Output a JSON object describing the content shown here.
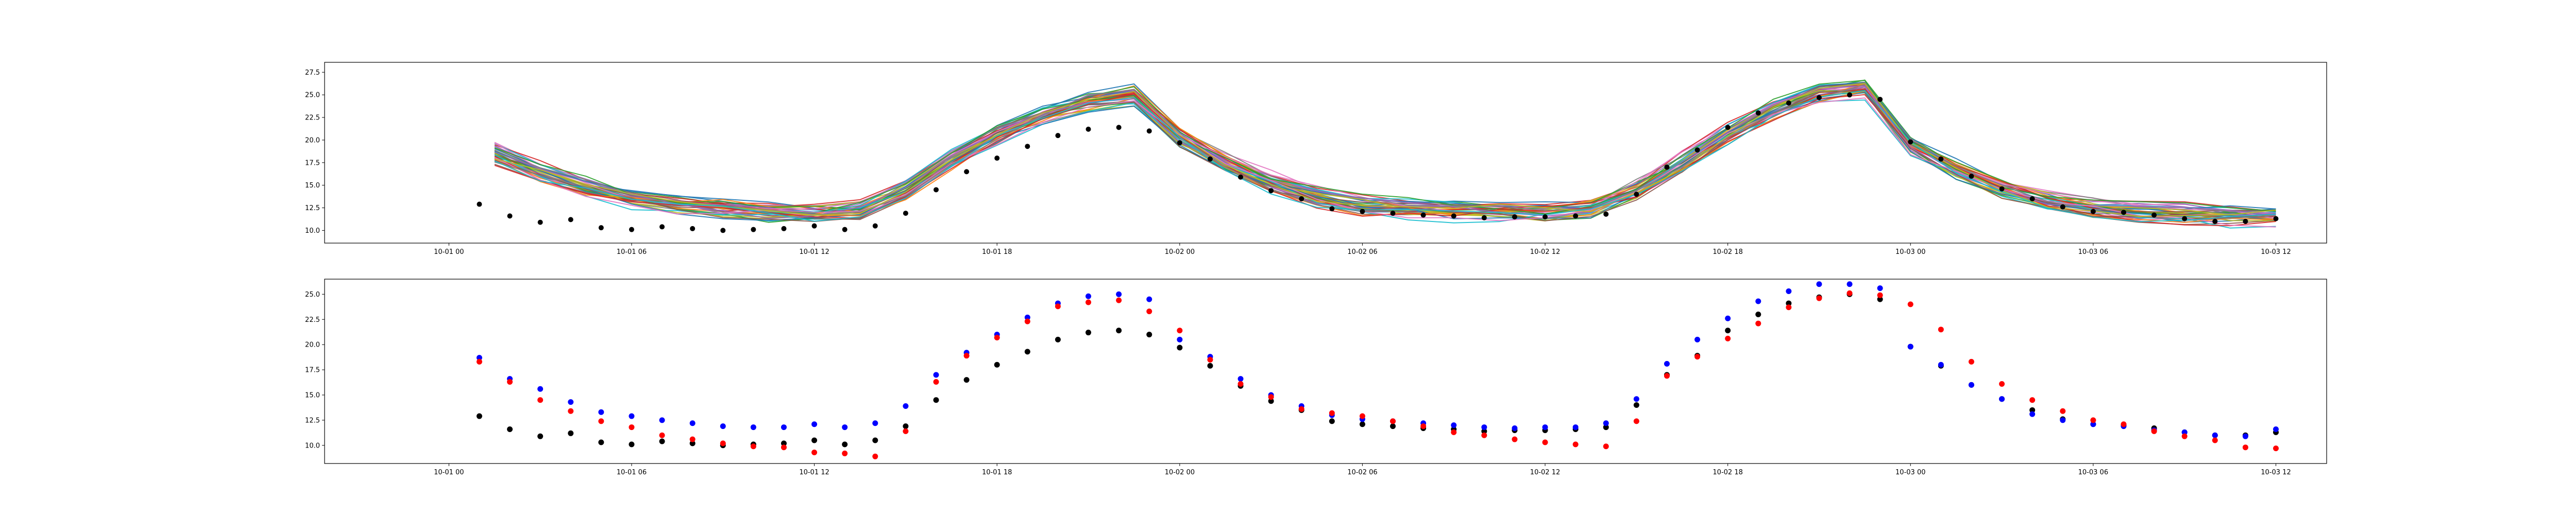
{
  "colors": {
    "observed": "#000000",
    "series_blue": "#0000ff",
    "series_red": "#ff0000",
    "ensemble_cycle": [
      "#1f77b4",
      "#ff7f0e",
      "#2ca02c",
      "#d62728",
      "#9467bd",
      "#8c564b",
      "#e377c2",
      "#7f7f7f",
      "#bcbd22",
      "#17becf"
    ]
  },
  "chart_data": [
    {
      "type": "line",
      "x_axis": {
        "type": "datetime",
        "range": [
          "2023-09-30T19:55",
          "2023-10-03T13:40"
        ],
        "tick_values": [
          "2023-10-01T00:00",
          "2023-10-01T06:00",
          "2023-10-01T12:00",
          "2023-10-01T18:00",
          "2023-10-02T00:00",
          "2023-10-02T06:00",
          "2023-10-02T12:00",
          "2023-10-02T18:00",
          "2023-10-03T00:00",
          "2023-10-03T06:00",
          "2023-10-03T12:00"
        ],
        "tick_labels": [
          "10-01 00",
          "10-01 06",
          "10-01 12",
          "10-01 18",
          "10-02 00",
          "10-02 06",
          "10-02 12",
          "10-02 18",
          "10-03 00",
          "10-03 06",
          "10-03 12"
        ]
      },
      "y_axis": {
        "range": [
          8.6,
          28.6
        ],
        "tick_values": [
          10.0,
          12.5,
          15.0,
          17.5,
          20.0,
          22.5,
          25.0,
          27.5
        ],
        "tick_labels": [
          "10.0",
          "12.5",
          "15.0",
          "17.5",
          "20.0",
          "22.5",
          "25.0",
          "27.5"
        ]
      },
      "ensemble": {
        "member_count": 40,
        "x": [
          "2023-10-01T01:30",
          "2023-10-01T03:00",
          "2023-10-01T04:30",
          "2023-10-01T06:00",
          "2023-10-01T07:30",
          "2023-10-01T09:00",
          "2023-10-01T10:30",
          "2023-10-01T12:00",
          "2023-10-01T13:30",
          "2023-10-01T15:00",
          "2023-10-01T16:30",
          "2023-10-01T18:00",
          "2023-10-01T19:30",
          "2023-10-01T21:00",
          "2023-10-01T22:30",
          "2023-10-02T00:00",
          "2023-10-02T01:30",
          "2023-10-02T03:00",
          "2023-10-02T04:30",
          "2023-10-02T06:00",
          "2023-10-02T07:30",
          "2023-10-02T09:00",
          "2023-10-02T10:30",
          "2023-10-02T12:00",
          "2023-10-02T13:30",
          "2023-10-02T15:00",
          "2023-10-02T16:30",
          "2023-10-02T18:00",
          "2023-10-02T19:30",
          "2023-10-02T21:00",
          "2023-10-02T22:30",
          "2023-10-03T00:00",
          "2023-10-03T01:30",
          "2023-10-03T03:00",
          "2023-10-03T04:30",
          "2023-10-03T06:00",
          "2023-10-03T07:30",
          "2023-10-03T09:00",
          "2023-10-03T10:30",
          "2023-10-03T12:00"
        ],
        "mean": [
          18.6,
          16.5,
          14.8,
          13.6,
          12.9,
          12.5,
          12.2,
          12.1,
          12.4,
          14.6,
          17.8,
          20.6,
          22.7,
          24.3,
          25.0,
          20.5,
          17.6,
          15.4,
          13.8,
          12.9,
          12.5,
          12.3,
          12.2,
          12.2,
          12.6,
          14.6,
          17.6,
          20.8,
          23.4,
          25.2,
          25.8,
          19.5,
          16.8,
          14.8,
          13.4,
          12.6,
          12.2,
          11.9,
          11.7,
          11.6
        ],
        "spread": 1.1
      },
      "observed": {
        "name": "",
        "x": [
          "2023-10-01T01:00",
          "2023-10-01T02:00",
          "2023-10-01T03:00",
          "2023-10-01T04:00",
          "2023-10-01T05:00",
          "2023-10-01T06:00",
          "2023-10-01T07:00",
          "2023-10-01T08:00",
          "2023-10-01T09:00",
          "2023-10-01T10:00",
          "2023-10-01T11:00",
          "2023-10-01T12:00",
          "2023-10-01T13:00",
          "2023-10-01T14:00",
          "2023-10-01T15:00",
          "2023-10-01T16:00",
          "2023-10-01T17:00",
          "2023-10-01T18:00",
          "2023-10-01T19:00",
          "2023-10-01T20:00",
          "2023-10-01T21:00",
          "2023-10-01T22:00",
          "2023-10-01T23:00",
          "2023-10-02T00:00",
          "2023-10-02T01:00",
          "2023-10-02T02:00",
          "2023-10-02T03:00",
          "2023-10-02T04:00",
          "2023-10-02T05:00",
          "2023-10-02T06:00",
          "2023-10-02T07:00",
          "2023-10-02T08:00",
          "2023-10-02T09:00",
          "2023-10-02T10:00",
          "2023-10-02T11:00",
          "2023-10-02T12:00",
          "2023-10-02T13:00",
          "2023-10-02T14:00",
          "2023-10-02T15:00",
          "2023-10-02T16:00",
          "2023-10-02T17:00",
          "2023-10-02T18:00",
          "2023-10-02T19:00",
          "2023-10-02T20:00",
          "2023-10-02T21:00",
          "2023-10-02T22:00",
          "2023-10-02T23:00",
          "2023-10-03T00:00",
          "2023-10-03T01:00",
          "2023-10-03T02:00",
          "2023-10-03T03:00",
          "2023-10-03T04:00",
          "2023-10-03T05:00",
          "2023-10-03T06:00",
          "2023-10-03T07:00",
          "2023-10-03T08:00",
          "2023-10-03T09:00",
          "2023-10-03T10:00",
          "2023-10-03T11:00",
          "2023-10-03T12:00"
        ],
        "y": [
          12.9,
          11.6,
          10.9,
          11.2,
          10.3,
          10.1,
          10.4,
          10.2,
          10.0,
          10.1,
          10.2,
          10.5,
          10.1,
          10.5,
          11.9,
          14.5,
          16.5,
          18.0,
          19.3,
          20.5,
          21.2,
          21.4,
          21.0,
          19.7,
          17.9,
          15.9,
          14.4,
          13.5,
          12.4,
          12.1,
          11.9,
          11.7,
          11.6,
          11.4,
          11.5,
          11.5,
          11.6,
          11.8,
          14.0,
          17.0,
          18.9,
          21.4,
          23.0,
          24.1,
          24.7,
          25.0,
          24.5,
          19.8,
          17.9,
          16.0,
          14.6,
          13.5,
          12.6,
          12.1,
          12.0,
          11.7,
          11.3,
          11.0,
          11.0,
          11.3
        ]
      }
    },
    {
      "type": "scatter",
      "x_axis": {
        "type": "datetime",
        "range": [
          "2023-09-30T19:55",
          "2023-10-03T13:40"
        ],
        "tick_values": [
          "2023-10-01T00:00",
          "2023-10-01T06:00",
          "2023-10-01T12:00",
          "2023-10-01T18:00",
          "2023-10-02T00:00",
          "2023-10-02T06:00",
          "2023-10-02T12:00",
          "2023-10-02T18:00",
          "2023-10-03T00:00",
          "2023-10-03T06:00",
          "2023-10-03T12:00"
        ],
        "tick_labels": [
          "10-01 00",
          "10-01 06",
          "10-01 12",
          "10-01 18",
          "10-02 00",
          "10-02 06",
          "10-02 12",
          "10-02 18",
          "10-03 00",
          "10-03 06",
          "10-03 12"
        ]
      },
      "y_axis": {
        "range": [
          8.2,
          26.5
        ],
        "tick_values": [
          10.0,
          12.5,
          15.0,
          17.5,
          20.0,
          22.5,
          25.0
        ],
        "tick_labels": [
          "10.0",
          "12.5",
          "15.0",
          "17.5",
          "20.0",
          "22.5",
          "25.0"
        ]
      },
      "series": [
        {
          "name": "",
          "color": "#000000",
          "x": [
            "2023-10-01T01:00",
            "2023-10-01T02:00",
            "2023-10-01T03:00",
            "2023-10-01T04:00",
            "2023-10-01T05:00",
            "2023-10-01T06:00",
            "2023-10-01T07:00",
            "2023-10-01T08:00",
            "2023-10-01T09:00",
            "2023-10-01T10:00",
            "2023-10-01T11:00",
            "2023-10-01T12:00",
            "2023-10-01T13:00",
            "2023-10-01T14:00",
            "2023-10-01T15:00",
            "2023-10-01T16:00",
            "2023-10-01T17:00",
            "2023-10-01T18:00",
            "2023-10-01T19:00",
            "2023-10-01T20:00",
            "2023-10-01T21:00",
            "2023-10-01T22:00",
            "2023-10-01T23:00",
            "2023-10-02T00:00",
            "2023-10-02T01:00",
            "2023-10-02T02:00",
            "2023-10-02T03:00",
            "2023-10-02T04:00",
            "2023-10-02T05:00",
            "2023-10-02T06:00",
            "2023-10-02T07:00",
            "2023-10-02T08:00",
            "2023-10-02T09:00",
            "2023-10-02T10:00",
            "2023-10-02T11:00",
            "2023-10-02T12:00",
            "2023-10-02T13:00",
            "2023-10-02T14:00",
            "2023-10-02T15:00",
            "2023-10-02T16:00",
            "2023-10-02T17:00",
            "2023-10-02T18:00",
            "2023-10-02T19:00",
            "2023-10-02T20:00",
            "2023-10-02T21:00",
            "2023-10-02T22:00",
            "2023-10-02T23:00",
            "2023-10-03T00:00",
            "2023-10-03T01:00",
            "2023-10-03T02:00",
            "2023-10-03T03:00",
            "2023-10-03T04:00",
            "2023-10-03T05:00",
            "2023-10-03T06:00",
            "2023-10-03T07:00",
            "2023-10-03T08:00",
            "2023-10-03T09:00",
            "2023-10-03T10:00",
            "2023-10-03T11:00",
            "2023-10-03T12:00"
          ],
          "y": [
            12.9,
            11.6,
            10.9,
            11.2,
            10.3,
            10.1,
            10.4,
            10.2,
            10.0,
            10.1,
            10.2,
            10.5,
            10.1,
            10.5,
            11.9,
            14.5,
            16.5,
            18.0,
            19.3,
            20.5,
            21.2,
            21.4,
            21.0,
            19.7,
            17.9,
            15.9,
            14.4,
            13.5,
            12.4,
            12.1,
            11.9,
            11.7,
            11.6,
            11.4,
            11.5,
            11.5,
            11.6,
            11.8,
            14.0,
            17.0,
            18.9,
            21.4,
            23.0,
            24.1,
            24.7,
            25.0,
            24.5,
            19.8,
            17.9,
            16.0,
            14.6,
            13.5,
            12.6,
            12.1,
            12.0,
            11.7,
            11.3,
            11.0,
            11.0,
            11.3
          ]
        },
        {
          "name": "",
          "color": "#0000ff",
          "x": [
            "2023-10-01T01:00",
            "2023-10-01T02:00",
            "2023-10-01T03:00",
            "2023-10-01T04:00",
            "2023-10-01T05:00",
            "2023-10-01T06:00",
            "2023-10-01T07:00",
            "2023-10-01T08:00",
            "2023-10-01T09:00",
            "2023-10-01T10:00",
            "2023-10-01T11:00",
            "2023-10-01T12:00",
            "2023-10-01T13:00",
            "2023-10-01T14:00",
            "2023-10-01T15:00",
            "2023-10-01T16:00",
            "2023-10-01T17:00",
            "2023-10-01T18:00",
            "2023-10-01T19:00",
            "2023-10-01T20:00",
            "2023-10-01T21:00",
            "2023-10-01T22:00",
            "2023-10-01T23:00",
            "2023-10-02T00:00",
            "2023-10-02T01:00",
            "2023-10-02T02:00",
            "2023-10-02T03:00",
            "2023-10-02T04:00",
            "2023-10-02T05:00",
            "2023-10-02T06:00",
            "2023-10-02T07:00",
            "2023-10-02T08:00",
            "2023-10-02T09:00",
            "2023-10-02T10:00",
            "2023-10-02T11:00",
            "2023-10-02T12:00",
            "2023-10-02T13:00",
            "2023-10-02T14:00",
            "2023-10-02T15:00",
            "2023-10-02T16:00",
            "2023-10-02T17:00",
            "2023-10-02T18:00",
            "2023-10-02T19:00",
            "2023-10-02T20:00",
            "2023-10-02T21:00",
            "2023-10-02T22:00",
            "2023-10-02T23:00",
            "2023-10-03T00:00",
            "2023-10-03T01:00",
            "2023-10-03T02:00",
            "2023-10-03T03:00",
            "2023-10-03T04:00",
            "2023-10-03T05:00",
            "2023-10-03T06:00",
            "2023-10-03T07:00",
            "2023-10-03T08:00",
            "2023-10-03T09:00",
            "2023-10-03T10:00",
            "2023-10-03T11:00",
            "2023-10-03T12:00"
          ],
          "y": [
            18.7,
            16.6,
            15.6,
            14.3,
            13.3,
            12.9,
            12.5,
            12.2,
            11.9,
            11.8,
            11.8,
            12.1,
            11.8,
            12.2,
            13.9,
            17.0,
            19.2,
            21.0,
            22.7,
            24.1,
            24.8,
            25.0,
            24.5,
            20.5,
            18.8,
            16.6,
            15.0,
            13.9,
            13.0,
            12.6,
            12.4,
            12.2,
            12.0,
            11.8,
            11.7,
            11.8,
            11.8,
            12.2,
            14.6,
            18.1,
            20.5,
            22.6,
            24.3,
            25.3,
            26.0,
            26.0,
            25.6,
            19.8,
            18.0,
            16.0,
            14.6,
            13.1,
            12.5,
            12.1,
            11.9,
            11.5,
            11.3,
            11.0,
            10.9,
            11.6
          ]
        },
        {
          "name": "",
          "color": "#ff0000",
          "x": [
            "2023-10-01T01:00",
            "2023-10-01T02:00",
            "2023-10-01T03:00",
            "2023-10-01T04:00",
            "2023-10-01T05:00",
            "2023-10-01T06:00",
            "2023-10-01T07:00",
            "2023-10-01T08:00",
            "2023-10-01T09:00",
            "2023-10-01T10:00",
            "2023-10-01T11:00",
            "2023-10-01T12:00",
            "2023-10-01T13:00",
            "2023-10-01T14:00",
            "2023-10-01T15:00",
            "2023-10-01T16:00",
            "2023-10-01T17:00",
            "2023-10-01T18:00",
            "2023-10-01T19:00",
            "2023-10-01T20:00",
            "2023-10-01T21:00",
            "2023-10-01T22:00",
            "2023-10-01T23:00",
            "2023-10-02T00:00",
            "2023-10-02T01:00",
            "2023-10-02T02:00",
            "2023-10-02T03:00",
            "2023-10-02T04:00",
            "2023-10-02T05:00",
            "2023-10-02T06:00",
            "2023-10-02T07:00",
            "2023-10-02T08:00",
            "2023-10-02T09:00",
            "2023-10-02T10:00",
            "2023-10-02T11:00",
            "2023-10-02T12:00",
            "2023-10-02T13:00",
            "2023-10-02T14:00",
            "2023-10-02T15:00",
            "2023-10-02T16:00",
            "2023-10-02T17:00",
            "2023-10-02T18:00",
            "2023-10-02T19:00",
            "2023-10-02T20:00",
            "2023-10-02T21:00",
            "2023-10-02T22:00",
            "2023-10-02T23:00",
            "2023-10-03T00:00",
            "2023-10-03T01:00",
            "2023-10-03T02:00",
            "2023-10-03T03:00",
            "2023-10-03T04:00",
            "2023-10-03T05:00",
            "2023-10-03T06:00",
            "2023-10-03T07:00",
            "2023-10-03T08:00",
            "2023-10-03T09:00",
            "2023-10-03T10:00",
            "2023-10-03T11:00",
            "2023-10-03T12:00"
          ],
          "y": [
            18.3,
            16.3,
            14.5,
            13.4,
            12.4,
            11.8,
            11.0,
            10.6,
            10.2,
            9.9,
            9.8,
            9.3,
            9.2,
            8.9,
            11.4,
            16.3,
            18.9,
            20.7,
            22.3,
            23.8,
            24.2,
            24.4,
            23.3,
            21.4,
            18.5,
            16.1,
            14.8,
            13.6,
            13.2,
            12.9,
            12.4,
            11.9,
            11.3,
            11.0,
            10.6,
            10.3,
            10.1,
            9.9,
            12.4,
            16.9,
            18.8,
            20.6,
            22.1,
            23.7,
            24.6,
            25.1,
            24.9,
            24.0,
            21.5,
            18.3,
            16.1,
            14.5,
            13.4,
            12.5,
            12.1,
            11.4,
            10.9,
            10.5,
            9.8,
            9.7
          ]
        }
      ]
    }
  ]
}
